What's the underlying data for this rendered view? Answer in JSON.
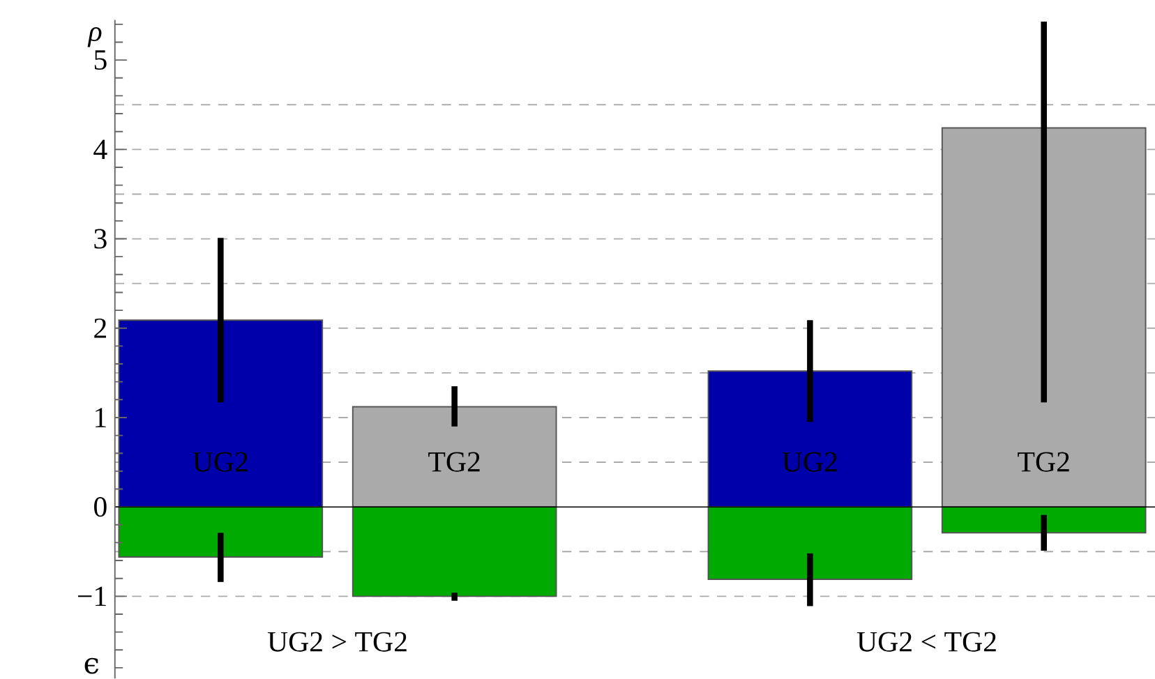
{
  "chart_data": {
    "type": "bar",
    "stacked": true,
    "categories": [
      "UG2",
      "TG2",
      "UG2",
      "TG2"
    ],
    "ylabel": "ρ",
    "annotations": [
      "ϵ",
      "UG2 > TG2",
      "UG2 < TG2"
    ],
    "series": [
      {
        "colors": [
          "#0000aa",
          "#aaaaaa",
          "#0000aa",
          "#aaaaaa"
        ],
        "values": [
          2.09,
          1.12,
          1.52,
          4.24
        ],
        "errors": [
          [
            1.17,
            3.01
          ],
          [
            0.9,
            1.35
          ],
          [
            0.95,
            2.09
          ],
          [
            1.17,
            5.43
          ]
        ]
      },
      {
        "color": "#00aa00",
        "values": [
          -0.56,
          -1.0,
          -0.81,
          -0.29
        ],
        "errors": [
          [
            -0.84,
            -0.29
          ],
          [
            -1.05,
            -0.96
          ],
          [
            -1.11,
            -0.52
          ],
          [
            -0.49,
            -0.09
          ]
        ]
      }
    ],
    "ylim": [
      -1.92,
      5.45
    ],
    "yticks": [
      {
        "value": -1,
        "label": "−1"
      },
      0,
      1,
      2,
      3,
      4,
      5,
      {
        "value": -1.8,
        "label": null
      },
      {
        "value": -1.6,
        "label": null
      },
      {
        "value": -1.4,
        "label": null
      },
      {
        "value": -1.2,
        "label": null
      },
      {
        "value": -0.8,
        "label": null
      },
      {
        "value": -0.6,
        "label": null
      },
      {
        "value": -0.4,
        "label": null
      },
      {
        "value": -0.2,
        "label": null
      },
      {
        "value": 0.2,
        "label": null
      },
      {
        "value": 0.4,
        "label": null
      },
      {
        "value": 0.6,
        "label": null
      },
      {
        "value": 0.8,
        "label": null
      },
      {
        "value": 1.2,
        "label": null
      },
      {
        "value": 1.4,
        "label": null
      },
      {
        "value": 1.6,
        "label": null
      },
      {
        "value": 1.8,
        "label": null
      },
      {
        "value": 2.2,
        "label": null
      },
      {
        "value": 2.4,
        "label": null
      },
      {
        "value": 2.6,
        "label": null
      },
      {
        "value": 2.8,
        "label": null
      },
      {
        "value": 3.2,
        "label": null
      },
      {
        "value": 3.4,
        "label": null
      },
      {
        "value": 3.6,
        "label": null
      },
      {
        "value": 3.8,
        "label": null
      },
      {
        "value": 4.2,
        "label": null
      },
      {
        "value": 4.4,
        "label": null
      },
      {
        "value": 4.6,
        "label": null
      },
      {
        "value": 4.8,
        "label": null
      },
      {
        "value": 5.2,
        "label": null
      },
      {
        "value": 5.4,
        "label": null
      }
    ],
    "ref_lines": [
      {
        "axis": "y",
        "value": -1,
        "color": "#aaaaaa",
        "line_style": "dashed"
      },
      {
        "axis": "y",
        "value": -0.5,
        "color": "#aaaaaa",
        "line_style": "dashed"
      },
      {
        "axis": "y",
        "value": 0.5,
        "color": "#aaaaaa",
        "line_style": "dashed"
      },
      {
        "axis": "y",
        "value": 1,
        "color": "#aaaaaa",
        "line_style": "dashed"
      },
      {
        "axis": "y",
        "value": 1.5,
        "color": "#aaaaaa",
        "line_style": "dashed"
      },
      {
        "axis": "y",
        "value": 2,
        "color": "#aaaaaa",
        "line_style": "dashed"
      },
      {
        "axis": "y",
        "value": 2.5,
        "color": "#aaaaaa",
        "line_style": "dashed"
      },
      {
        "axis": "y",
        "value": 3,
        "color": "#aaaaaa",
        "line_style": "dashed"
      },
      {
        "axis": "y",
        "value": 3.5,
        "color": "#aaaaaa",
        "line_style": "dashed"
      },
      {
        "axis": "y",
        "value": 4,
        "color": "#aaaaaa",
        "line_style": "dashed"
      },
      {
        "axis": "y",
        "value": 4.5,
        "color": "#aaaaaa",
        "line_style": "dashed"
      }
    ]
  }
}
